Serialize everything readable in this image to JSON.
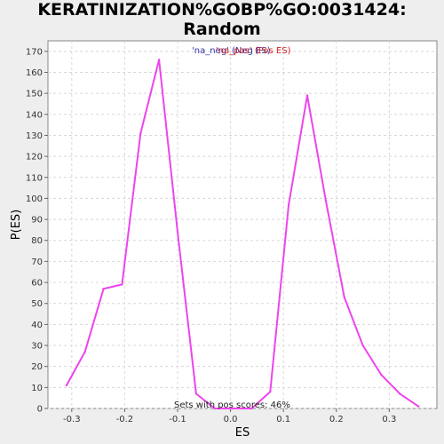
{
  "chart_data": {
    "type": "line",
    "title": "KERATINIZATION%GOBP%GO:0031424: Random\nES distribution",
    "xlabel": "ES",
    "ylabel": "P(ES)",
    "xlim": [
      -0.345,
      0.39
    ],
    "ylim": [
      0,
      175
    ],
    "xticks": [
      -0.3,
      -0.2,
      -0.1,
      0.0,
      0.1,
      0.2,
      0.3
    ],
    "xtick_labels": [
      "-0.3",
      "-0.2",
      "-0.1",
      "0.0",
      "0.1",
      "0.2",
      "0.3"
    ],
    "yticks": [
      0,
      10,
      20,
      30,
      40,
      50,
      60,
      70,
      80,
      90,
      100,
      110,
      120,
      130,
      140,
      150,
      160,
      170
    ],
    "ytick_labels": [
      "0",
      "10",
      "20",
      "30",
      "40",
      "50",
      "60",
      "70",
      "80",
      "90",
      "100",
      "110",
      "120",
      "130",
      "140",
      "150",
      "160",
      "170"
    ],
    "grid": true,
    "legend": [
      {
        "label": "'na_neg' (Neg ES)",
        "color": "#3333aa"
      },
      {
        "label": "'na_pos' (Pos ES)",
        "color": "#cc2222"
      }
    ],
    "legend_position": "top-center",
    "annotation": "Sets with pos scores: 46%",
    "series": [
      {
        "color": "#ee44ee",
        "x": [
          -0.31,
          -0.275,
          -0.24,
          -0.205,
          -0.17,
          -0.135,
          -0.1,
          -0.065,
          -0.03,
          0.005,
          0.04,
          0.075,
          0.11,
          0.145,
          0.18,
          0.215,
          0.25,
          0.285,
          0.32,
          0.355
        ],
        "y": [
          11,
          27,
          57,
          59,
          131,
          166,
          84,
          7,
          0,
          0,
          0,
          8,
          97,
          149,
          99,
          53,
          30,
          16,
          7,
          1
        ]
      }
    ]
  }
}
